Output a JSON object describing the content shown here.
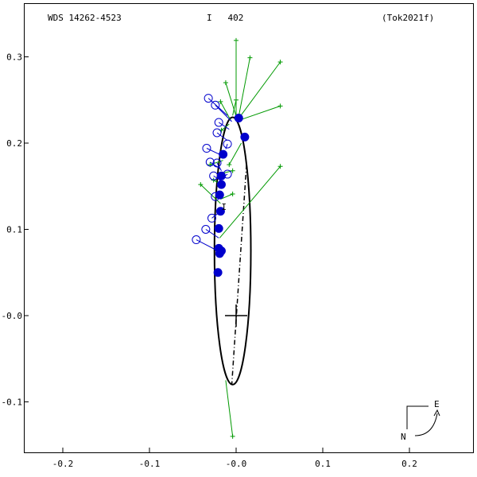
{
  "header": {
    "left": "WDS 14262-4523",
    "center": "I   402",
    "right": "(Tok2021f)"
  },
  "compass": {
    "east": "E",
    "north": "N"
  },
  "chart_data": {
    "type": "scatter",
    "title": "",
    "xlabel": "",
    "ylabel": "",
    "xlim": [
      -0.2,
      0.2
    ],
    "ylim": [
      -0.15,
      0.3
    ],
    "x_ticks": [
      -0.2,
      -0.1,
      0.0,
      0.1,
      0.2
    ],
    "x_tick_labels": [
      "-0.2",
      "-0.1",
      "-0.0",
      "0.1",
      "0.2"
    ],
    "y_ticks": [
      -0.1,
      0.0,
      0.1,
      0.2,
      0.3
    ],
    "y_tick_labels": [
      "-0.1",
      "-0.0",
      "0.1",
      "0.2",
      "0.3"
    ],
    "grid": false,
    "orbit_ellipse": {
      "center": [
        -0.004,
        0.075
      ],
      "rx": 0.021,
      "ry": 0.155
    },
    "node_line": [
      [
        0.012,
        0.175
      ],
      [
        -0.005,
        -0.08
      ]
    ],
    "primary_cross": [
      0.0,
      0.0
    ],
    "micrometer_filled": [
      {
        "pos": [
          0.003,
          0.229
        ],
        "resid_to": [
          0.003,
          0.229
        ]
      },
      {
        "pos": [
          0.01,
          0.207
        ],
        "resid_to": [
          0.01,
          0.207
        ]
      },
      {
        "pos": [
          -0.015,
          0.187
        ],
        "resid_to": [
          -0.015,
          0.187
        ]
      },
      {
        "pos": [
          -0.017,
          0.162
        ],
        "resid_to": [
          -0.017,
          0.162
        ]
      },
      {
        "pos": [
          -0.017,
          0.152
        ],
        "resid_to": [
          -0.017,
          0.152
        ]
      },
      {
        "pos": [
          -0.019,
          0.14
        ],
        "resid_to": [
          -0.019,
          0.14
        ]
      },
      {
        "pos": [
          -0.018,
          0.121
        ],
        "resid_to": [
          -0.018,
          0.121
        ]
      },
      {
        "pos": [
          -0.02,
          0.101
        ],
        "resid_to": [
          -0.02,
          0.101
        ]
      },
      {
        "pos": [
          -0.02,
          0.078
        ],
        "resid_to": [
          -0.02,
          0.078
        ]
      },
      {
        "pos": [
          -0.019,
          0.072
        ],
        "resid_to": [
          -0.019,
          0.072
        ]
      },
      {
        "pos": [
          -0.017,
          0.075
        ],
        "resid_to": [
          -0.017,
          0.075
        ]
      },
      {
        "pos": [
          -0.021,
          0.05
        ],
        "resid_to": [
          -0.021,
          0.05
        ]
      }
    ],
    "micrometer_open": [
      {
        "pos": [
          -0.032,
          0.252
        ],
        "resid_to": [
          -0.01,
          0.232
        ]
      },
      {
        "pos": [
          -0.024,
          0.244
        ],
        "resid_to": [
          -0.005,
          0.225
        ]
      },
      {
        "pos": [
          -0.02,
          0.224
        ],
        "resid_to": [
          -0.008,
          0.216
        ]
      },
      {
        "pos": [
          -0.022,
          0.212
        ],
        "resid_to": [
          -0.01,
          0.203
        ]
      },
      {
        "pos": [
          -0.01,
          0.199
        ],
        "resid_to": [
          -0.012,
          0.193
        ]
      },
      {
        "pos": [
          -0.034,
          0.194
        ],
        "resid_to": [
          -0.015,
          0.185
        ]
      },
      {
        "pos": [
          -0.03,
          0.178
        ],
        "resid_to": [
          -0.018,
          0.17
        ]
      },
      {
        "pos": [
          -0.022,
          0.177
        ],
        "resid_to": [
          -0.017,
          0.168
        ]
      },
      {
        "pos": [
          -0.01,
          0.164
        ],
        "resid_to": [
          -0.016,
          0.16
        ]
      },
      {
        "pos": [
          -0.026,
          0.162
        ],
        "resid_to": [
          -0.017,
          0.156
        ]
      },
      {
        "pos": [
          -0.024,
          0.138
        ],
        "resid_to": [
          -0.018,
          0.14
        ]
      },
      {
        "pos": [
          -0.028,
          0.113
        ],
        "resid_to": [
          -0.019,
          0.12
        ]
      },
      {
        "pos": [
          -0.035,
          0.1
        ],
        "resid_to": [
          -0.02,
          0.09
        ]
      },
      {
        "pos": [
          -0.046,
          0.088
        ],
        "resid_to": [
          -0.021,
          0.075
        ]
      }
    ],
    "speckle_plus": [
      {
        "pos": [
          0.0,
          0.319
        ],
        "resid_to": [
          0.0,
          0.232
        ]
      },
      {
        "pos": [
          0.016,
          0.299
        ],
        "resid_to": [
          0.003,
          0.231
        ]
      },
      {
        "pos": [
          0.051,
          0.294
        ],
        "resid_to": [
          0.004,
          0.23
        ]
      },
      {
        "pos": [
          -0.012,
          0.27
        ],
        "resid_to": [
          0.001,
          0.228
        ]
      },
      {
        "pos": [
          0.051,
          0.243
        ],
        "resid_to": [
          0.002,
          0.226
        ]
      },
      {
        "pos": [
          0.0,
          0.25
        ],
        "resid_to": [
          -0.004,
          0.232
        ]
      },
      {
        "pos": [
          -0.018,
          0.248
        ],
        "resid_to": [
          -0.006,
          0.226
        ]
      },
      {
        "pos": [
          -0.017,
          0.215
        ],
        "resid_to": [
          -0.008,
          0.222
        ]
      },
      {
        "pos": [
          -0.03,
          0.175
        ],
        "resid_to": [
          -0.015,
          0.18
        ]
      },
      {
        "pos": [
          -0.008,
          0.175
        ],
        "resid_to": [
          0.006,
          0.2
        ]
      },
      {
        "pos": [
          -0.004,
          0.168
        ],
        "resid_to": [
          -0.016,
          0.165
        ]
      },
      {
        "pos": [
          -0.026,
          0.157
        ],
        "resid_to": [
          -0.017,
          0.152
        ]
      },
      {
        "pos": [
          -0.041,
          0.152
        ],
        "resid_to": [
          -0.018,
          0.13
        ]
      },
      {
        "pos": [
          -0.004,
          0.141
        ],
        "resid_to": [
          -0.018,
          0.135
        ]
      },
      {
        "pos": [
          0.051,
          0.173
        ],
        "resid_to": [
          -0.019,
          0.09
        ]
      },
      {
        "pos": [
          -0.004,
          -0.14
        ],
        "resid_to": [
          -0.012,
          -0.075
        ]
      }
    ],
    "red_marker": {
      "pos": [
        -0.014,
        0.127
      ],
      "label": "I"
    }
  }
}
